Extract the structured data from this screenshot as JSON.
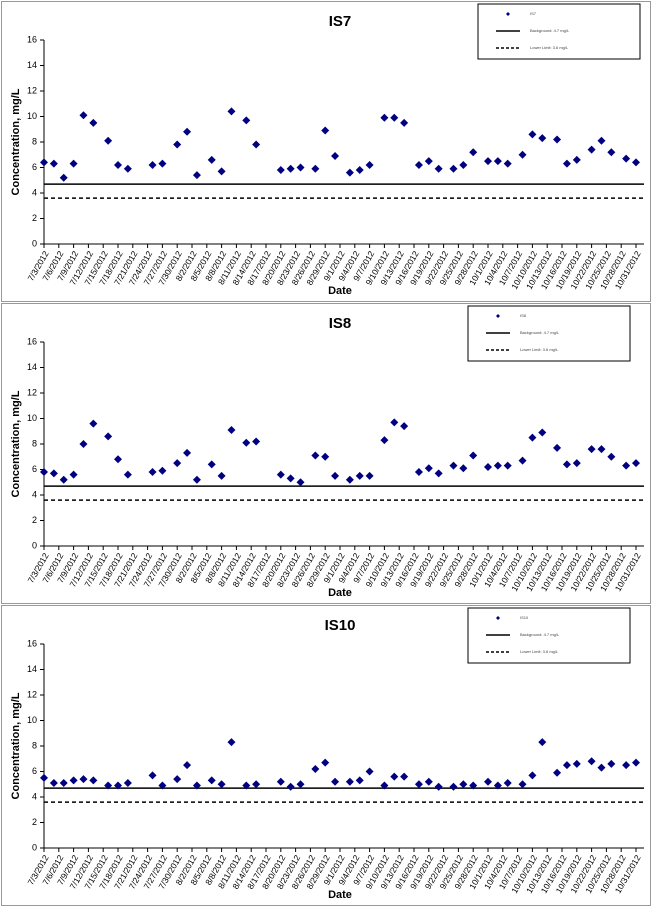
{
  "chart_data": [
    {
      "type": "scatter",
      "title": "IS7",
      "x_label": "Date",
      "y_label": "Concentration, mg/L",
      "x": [
        "7/3/2012",
        "7/5/2012",
        "7/7/2012",
        "7/9/2012",
        "7/11/2012",
        "7/13/2012",
        "7/16/2012",
        "7/18/2012",
        "7/20/2012",
        "7/25/2012",
        "7/27/2012",
        "7/30/2012",
        "8/1/2012",
        "8/3/2012",
        "8/6/2012",
        "8/8/2012",
        "8/10/2012",
        "8/13/2012",
        "8/15/2012",
        "8/20/2012",
        "8/22/2012",
        "8/24/2012",
        "8/27/2012",
        "8/29/2012",
        "8/31/2012",
        "9/3/2012",
        "9/5/2012",
        "9/7/2012",
        "9/10/2012",
        "9/12/2012",
        "9/14/2012",
        "9/17/2012",
        "9/19/2012",
        "9/21/2012",
        "9/24/2012",
        "9/26/2012",
        "9/28/2012",
        "10/1/2012",
        "10/3/2012",
        "10/5/2012",
        "10/8/2012",
        "10/10/2012",
        "10/12/2012",
        "10/15/2012",
        "10/17/2012",
        "10/19/2012",
        "10/22/2012",
        "10/24/2012",
        "10/26/2012",
        "10/29/2012",
        "10/31/2012"
      ],
      "series": [
        {
          "name": "IS7",
          "color": "#000080",
          "values": [
            6.4,
            6.3,
            5.2,
            6.3,
            10.1,
            9.5,
            8.1,
            6.2,
            5.9,
            6.2,
            6.3,
            7.8,
            8.8,
            5.4,
            6.6,
            5.7,
            10.4,
            9.7,
            7.8,
            5.8,
            5.9,
            6.0,
            5.9,
            8.9,
            6.9,
            5.6,
            5.8,
            6.2,
            9.9,
            9.9,
            9.5,
            6.2,
            6.5,
            5.9,
            5.9,
            6.2,
            7.2,
            6.5,
            6.5,
            6.3,
            7.0,
            8.6,
            8.3,
            8.2,
            6.3,
            6.6,
            7.4,
            8.1,
            7.2,
            6.7,
            6.4
          ]
        }
      ],
      "reference_lines": [
        {
          "name": "Background: 4.7 mg/L",
          "value": 4.7,
          "style": "solid"
        },
        {
          "name": "Lower Limit: 3.6 mg/L",
          "value": 3.6,
          "style": "dashed"
        }
      ],
      "xlim": [
        "7/3/2012",
        "10/31/2012"
      ],
      "xticks": [
        "7/3/2012",
        "7/6/2012",
        "7/9/2012",
        "7/12/2012",
        "7/15/2012",
        "7/18/2012",
        "7/21/2012",
        "7/24/2012",
        "7/27/2012",
        "7/30/2012",
        "8/2/2012",
        "8/5/2012",
        "8/8/2012",
        "8/11/2012",
        "8/14/2012",
        "8/17/2012",
        "8/20/2012",
        "8/23/2012",
        "8/26/2012",
        "8/29/2012",
        "9/1/2012",
        "9/4/2012",
        "9/7/2012",
        "9/10/2012",
        "9/13/2012",
        "9/16/2012",
        "9/19/2012",
        "9/22/2012",
        "9/25/2012",
        "9/28/2012",
        "10/1/2012",
        "10/4/2012",
        "10/7/2012",
        "10/10/2012",
        "10/13/2012",
        "10/16/2012",
        "10/19/2012",
        "10/22/2012",
        "10/25/2012",
        "10/28/2012",
        "10/31/2012"
      ],
      "ylim": [
        0,
        16
      ],
      "yticks": [
        0,
        2,
        4,
        6,
        8,
        10,
        12,
        14,
        16
      ],
      "legend": "upper right"
    },
    {
      "type": "scatter",
      "title": "IS8",
      "x_label": "Date",
      "y_label": "Concentration, mg/L",
      "x": [
        "7/3/2012",
        "7/5/2012",
        "7/7/2012",
        "7/9/2012",
        "7/11/2012",
        "7/13/2012",
        "7/16/2012",
        "7/18/2012",
        "7/20/2012",
        "7/25/2012",
        "7/27/2012",
        "7/30/2012",
        "8/1/2012",
        "8/3/2012",
        "8/6/2012",
        "8/8/2012",
        "8/10/2012",
        "8/13/2012",
        "8/15/2012",
        "8/20/2012",
        "8/22/2012",
        "8/24/2012",
        "8/27/2012",
        "8/29/2012",
        "8/31/2012",
        "9/3/2012",
        "9/5/2012",
        "9/7/2012",
        "9/10/2012",
        "9/12/2012",
        "9/14/2012",
        "9/17/2012",
        "9/19/2012",
        "9/21/2012",
        "9/24/2012",
        "9/26/2012",
        "9/28/2012",
        "10/1/2012",
        "10/3/2012",
        "10/5/2012",
        "10/8/2012",
        "10/10/2012",
        "10/12/2012",
        "10/15/2012",
        "10/17/2012",
        "10/19/2012",
        "10/22/2012",
        "10/24/2012",
        "10/26/2012",
        "10/29/2012",
        "10/31/2012"
      ],
      "series": [
        {
          "name": "IS8",
          "color": "#000080",
          "values": [
            5.8,
            5.7,
            5.2,
            5.6,
            8.0,
            9.6,
            8.6,
            6.8,
            5.6,
            5.8,
            5.9,
            6.5,
            7.3,
            5.2,
            6.4,
            5.5,
            9.1,
            8.1,
            8.2,
            5.6,
            5.3,
            5.0,
            7.1,
            7.0,
            5.5,
            5.2,
            5.5,
            5.5,
            8.3,
            9.7,
            9.4,
            5.8,
            6.1,
            5.7,
            6.3,
            6.1,
            7.1,
            6.2,
            6.3,
            6.3,
            6.7,
            8.5,
            8.9,
            7.7,
            6.4,
            6.5,
            7.6,
            7.6,
            7.0,
            6.3,
            6.5
          ]
        }
      ],
      "reference_lines": [
        {
          "name": "Background: 4.7 mg/L",
          "value": 4.7,
          "style": "solid"
        },
        {
          "name": "Lower Limit: 3.6 mg/L",
          "value": 3.6,
          "style": "dashed"
        }
      ],
      "xlim": [
        "7/3/2012",
        "10/31/2012"
      ],
      "xticks": [
        "7/3/2012",
        "7/6/2012",
        "7/9/2012",
        "7/12/2012",
        "7/15/2012",
        "7/18/2012",
        "7/21/2012",
        "7/24/2012",
        "7/27/2012",
        "7/30/2012",
        "8/2/2012",
        "8/5/2012",
        "8/8/2012",
        "8/11/2012",
        "8/14/2012",
        "8/17/2012",
        "8/20/2012",
        "8/23/2012",
        "8/26/2012",
        "8/29/2012",
        "9/1/2012",
        "9/4/2012",
        "9/7/2012",
        "9/10/2012",
        "9/13/2012",
        "9/16/2012",
        "9/19/2012",
        "9/22/2012",
        "9/25/2012",
        "9/28/2012",
        "10/1/2012",
        "10/4/2012",
        "10/7/2012",
        "10/10/2012",
        "10/13/2012",
        "10/16/2012",
        "10/19/2012",
        "10/22/2012",
        "10/25/2012",
        "10/28/2012",
        "10/31/2012"
      ],
      "ylim": [
        0,
        16
      ],
      "yticks": [
        0,
        2,
        4,
        6,
        8,
        10,
        12,
        14,
        16
      ],
      "legend": "upper right"
    },
    {
      "type": "scatter",
      "title": "IS10",
      "x_label": "Date",
      "y_label": "Concentration, mg/L",
      "x": [
        "7/3/2012",
        "7/5/2012",
        "7/7/2012",
        "7/9/2012",
        "7/11/2012",
        "7/13/2012",
        "7/16/2012",
        "7/18/2012",
        "7/20/2012",
        "7/25/2012",
        "7/27/2012",
        "7/30/2012",
        "8/1/2012",
        "8/3/2012",
        "8/6/2012",
        "8/8/2012",
        "8/10/2012",
        "8/13/2012",
        "8/15/2012",
        "8/20/2012",
        "8/22/2012",
        "8/24/2012",
        "8/27/2012",
        "8/29/2012",
        "8/31/2012",
        "9/3/2012",
        "9/5/2012",
        "9/7/2012",
        "9/10/2012",
        "9/12/2012",
        "9/14/2012",
        "9/17/2012",
        "9/19/2012",
        "9/21/2012",
        "9/24/2012",
        "9/26/2012",
        "9/28/2012",
        "10/1/2012",
        "10/3/2012",
        "10/5/2012",
        "10/8/2012",
        "10/10/2012",
        "10/12/2012",
        "10/15/2012",
        "10/17/2012",
        "10/19/2012",
        "10/22/2012",
        "10/24/2012",
        "10/26/2012",
        "10/29/2012",
        "10/31/2012"
      ],
      "series": [
        {
          "name": "IS10",
          "color": "#000080",
          "values": [
            5.5,
            5.1,
            5.1,
            5.3,
            5.4,
            5.3,
            4.9,
            4.9,
            5.1,
            5.7,
            4.9,
            5.4,
            6.5,
            4.9,
            5.3,
            5.0,
            8.3,
            4.9,
            5.0,
            5.2,
            4.8,
            5.0,
            6.2,
            6.7,
            5.2,
            5.2,
            5.3,
            6.0,
            4.9,
            5.6,
            5.6,
            5.0,
            5.2,
            4.8,
            4.8,
            5.0,
            4.9,
            5.2,
            4.9,
            5.1,
            5.0,
            5.7,
            8.3,
            5.9,
            6.5,
            6.6,
            6.8,
            6.3,
            6.6,
            6.5,
            6.7
          ]
        }
      ],
      "reference_lines": [
        {
          "name": "Background: 4.7 mg/L",
          "value": 4.7,
          "style": "solid"
        },
        {
          "name": "Lower Limit: 3.6 mg/L",
          "value": 3.6,
          "style": "dashed"
        }
      ],
      "xlim": [
        "7/3/2012",
        "10/31/2012"
      ],
      "xticks": [
        "7/3/2012",
        "7/6/2012",
        "7/9/2012",
        "7/12/2012",
        "7/15/2012",
        "7/18/2012",
        "7/21/2012",
        "7/24/2012",
        "7/27/2012",
        "7/30/2012",
        "8/2/2012",
        "8/5/2012",
        "8/8/2012",
        "8/11/2012",
        "8/14/2012",
        "8/17/2012",
        "8/20/2012",
        "8/23/2012",
        "8/26/2012",
        "8/29/2012",
        "9/1/2012",
        "9/4/2012",
        "9/7/2012",
        "9/10/2012",
        "9/13/2012",
        "9/16/2012",
        "9/19/2012",
        "9/22/2012",
        "9/25/2012",
        "9/28/2012",
        "10/1/2012",
        "10/4/2012",
        "10/7/2012",
        "10/10/2012",
        "10/13/2012",
        "10/16/2012",
        "10/19/2012",
        "10/22/2012",
        "10/25/2012",
        "10/28/2012",
        "10/31/2012"
      ],
      "ylim": [
        0,
        16
      ],
      "yticks": [
        0,
        2,
        4,
        6,
        8,
        10,
        12,
        14,
        16
      ],
      "legend": "upper right"
    }
  ]
}
